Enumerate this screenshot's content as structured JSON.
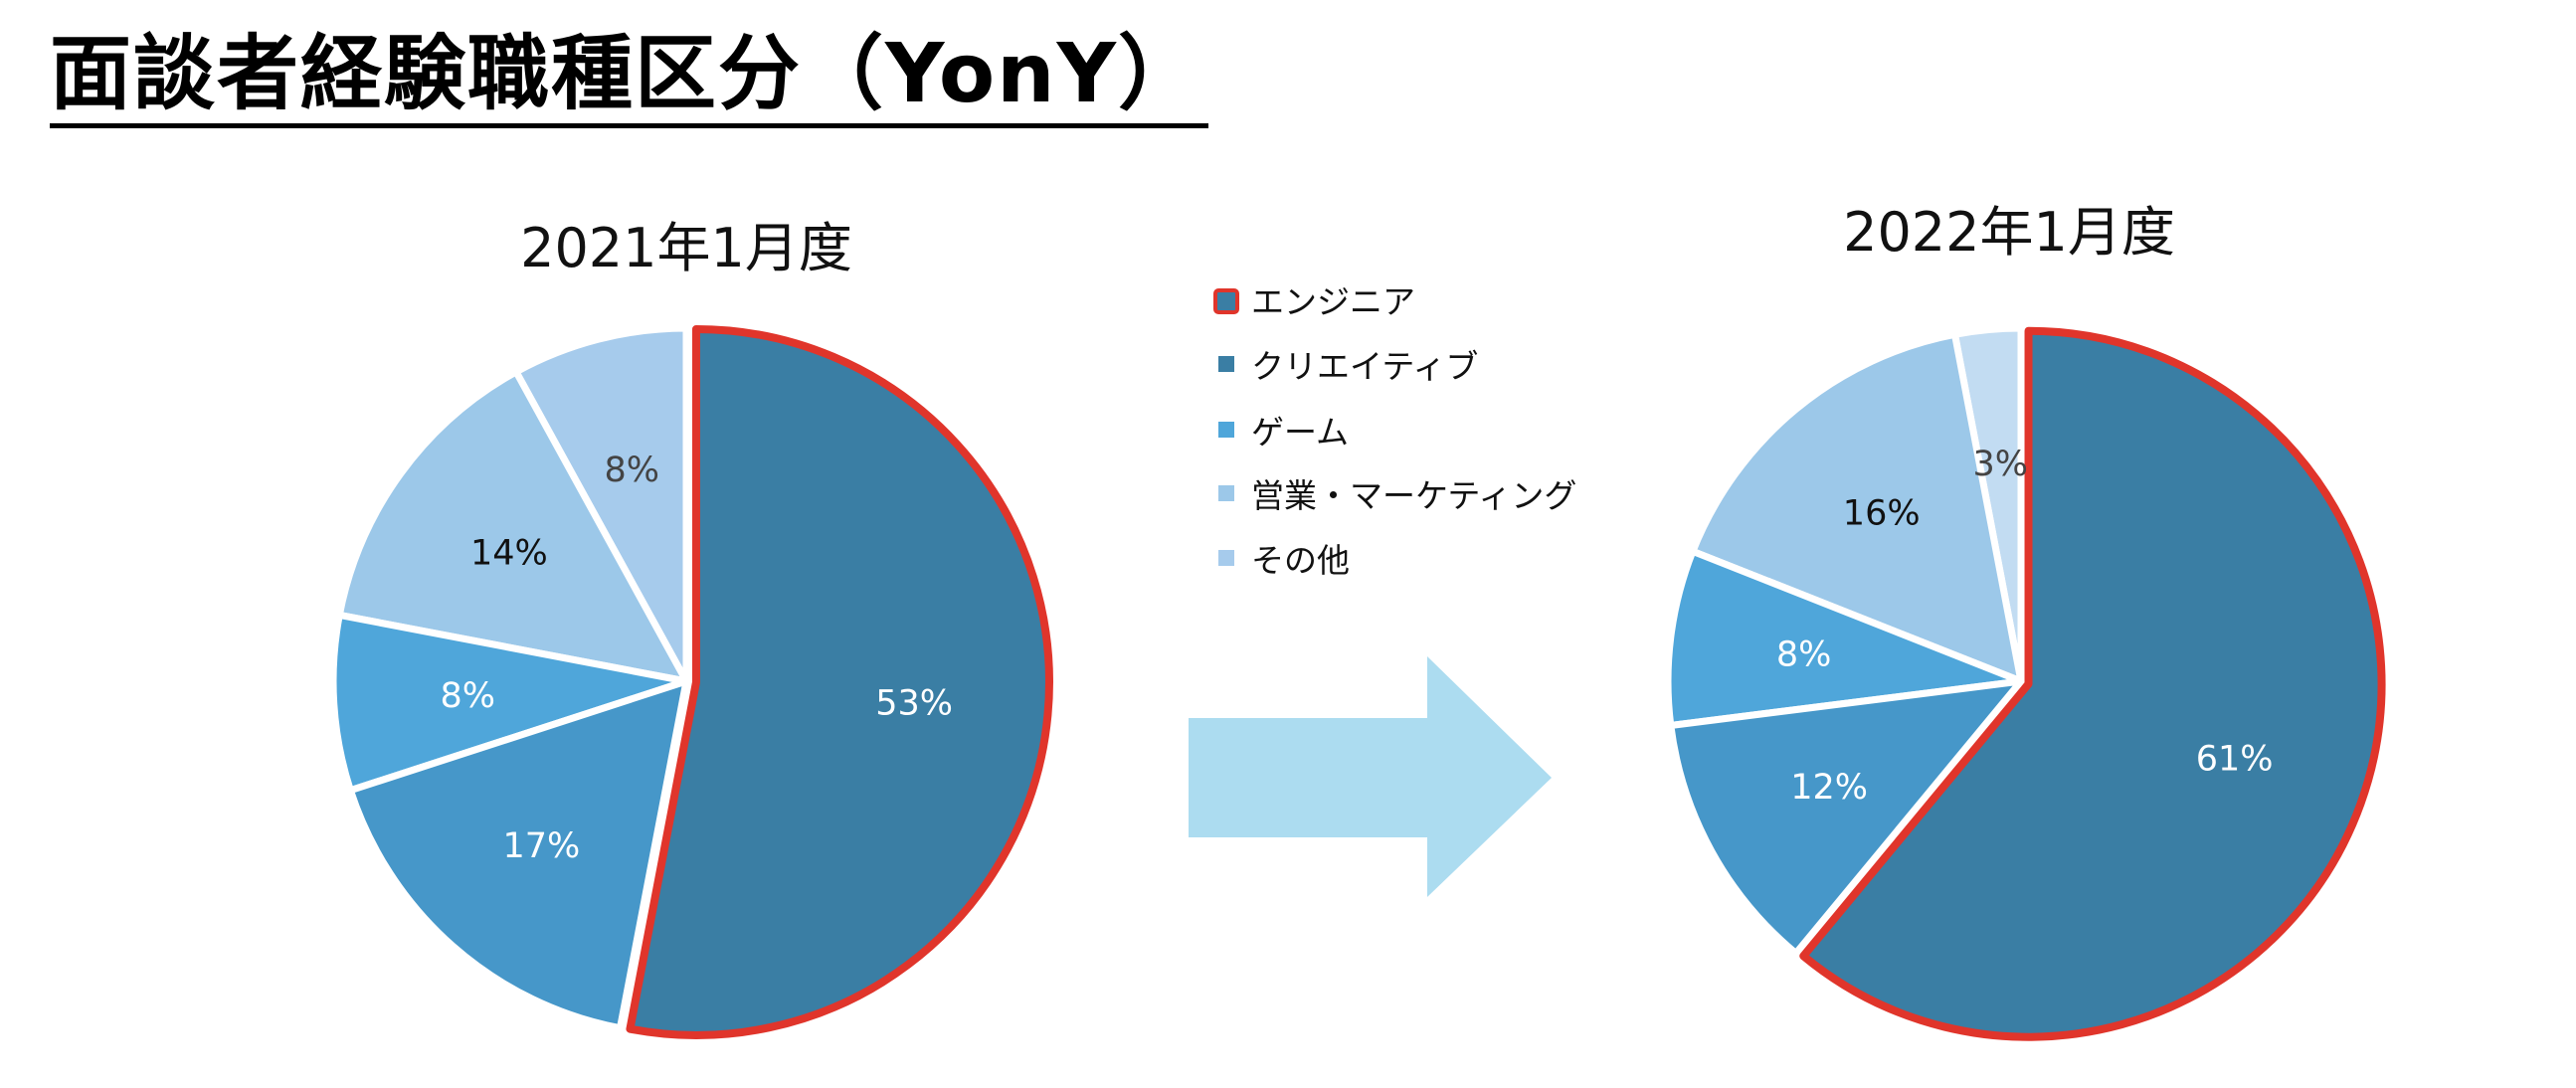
{
  "page": {
    "title": "面談者経験職種区分（YonY）"
  },
  "colors": {
    "highlight_border": "#e0352b",
    "arrow": "#acdcf0",
    "slice_border": "#ffffff"
  },
  "chart_data": [
    {
      "type": "pie",
      "title": "2021年1月度",
      "start": "12 o'clock",
      "direction": "clockwise",
      "highlighted_category": "エンジニア",
      "slices": [
        {
          "label": "エンジニア",
          "value": 53,
          "display": "53%",
          "color": "#3a7ea4",
          "label_color": "#ffffff"
        },
        {
          "label": "クリエイティブ",
          "value": 17,
          "display": "17%",
          "color": "#4697c9",
          "label_color": "#ffffff"
        },
        {
          "label": "ゲーム",
          "value": 8,
          "display": "8%",
          "color": "#4fa6da",
          "label_color": "#ffffff"
        },
        {
          "label": "営業・マーケティング",
          "value": 14,
          "display": "14%",
          "color": "#9cc8e9",
          "label_color": "#111111"
        },
        {
          "label": "その他",
          "value": 8,
          "display": "8%",
          "color": "#a6cbec",
          "label_color": "#444444"
        }
      ]
    },
    {
      "type": "pie",
      "title": "2022年1月度",
      "start": "12 o'clock",
      "direction": "clockwise",
      "highlighted_category": "エンジニア",
      "slices": [
        {
          "label": "エンジニア",
          "value": 61,
          "display": "61%",
          "color": "#3a7ea4",
          "label_color": "#ffffff"
        },
        {
          "label": "クリエイティブ",
          "value": 12,
          "display": "12%",
          "color": "#4697c9",
          "label_color": "#ffffff"
        },
        {
          "label": "ゲーム",
          "value": 8,
          "display": "8%",
          "color": "#4fa6da",
          "label_color": "#ffffff"
        },
        {
          "label": "営業・マーケティング",
          "value": 16,
          "display": "16%",
          "color": "#9cc8e9",
          "label_color": "#111111"
        },
        {
          "label": "その他",
          "value": 3,
          "display": "3%",
          "color": "#c2dcf2",
          "label_color": "#444444"
        }
      ]
    }
  ],
  "legend": {
    "placement": "center",
    "items": [
      {
        "label": "エンジニア",
        "color": "#3a7ea4",
        "highlighted": true
      },
      {
        "label": "クリエイティブ",
        "color": "#3a7ea4",
        "highlighted": false
      },
      {
        "label": "ゲーム",
        "color": "#4fa6da",
        "highlighted": false
      },
      {
        "label": "営業・マーケティング",
        "color": "#9cc8e9",
        "highlighted": false
      },
      {
        "label": "その他",
        "color": "#a6cbec",
        "highlighted": false
      }
    ]
  }
}
